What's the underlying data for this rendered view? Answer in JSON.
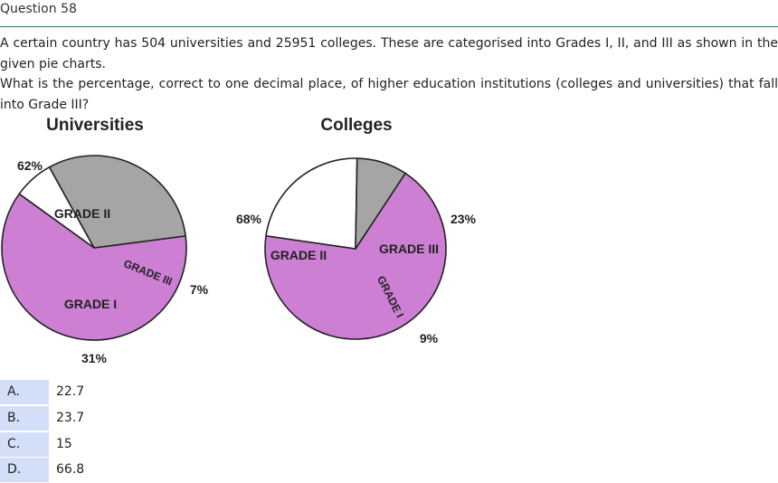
{
  "question": {
    "title": "Question 58",
    "line1": "A certain country has 504 universities and 25951 colleges. These are categorised into Grades I, II, and III as shown in the given pie charts.",
    "line2": "What is the percentage, correct to one decimal place, of higher education institutions (colleges and universities) that fall into Grade III?"
  },
  "chart_data": [
    {
      "type": "pie",
      "title": "Universities",
      "slices": [
        {
          "label": "GRADE II",
          "value": 62,
          "pct_label": "62%",
          "color": "#cc7fd3"
        },
        {
          "label": "GRADE III",
          "value": 7,
          "pct_label": "7%",
          "color": "#ffffff"
        },
        {
          "label": "GRADE I",
          "value": 31,
          "pct_label": "31%",
          "color": "#a5a5a5"
        }
      ]
    },
    {
      "type": "pie",
      "title": "Colleges",
      "slices": [
        {
          "label": "GRADE II",
          "value": 68,
          "pct_label": "68%",
          "color": "#cc7fd3"
        },
        {
          "label": "GRADE III",
          "value": 23,
          "pct_label": "23%",
          "color": "#ffffff"
        },
        {
          "label": "GRADE I",
          "value": 9,
          "pct_label": "9%",
          "color": "#a5a5a5"
        }
      ]
    }
  ],
  "options": [
    {
      "letter": "A.",
      "value": "22.7"
    },
    {
      "letter": "B.",
      "value": "23.7"
    },
    {
      "letter": "C.",
      "value": "15"
    },
    {
      "letter": "D.",
      "value": "66.8"
    }
  ]
}
